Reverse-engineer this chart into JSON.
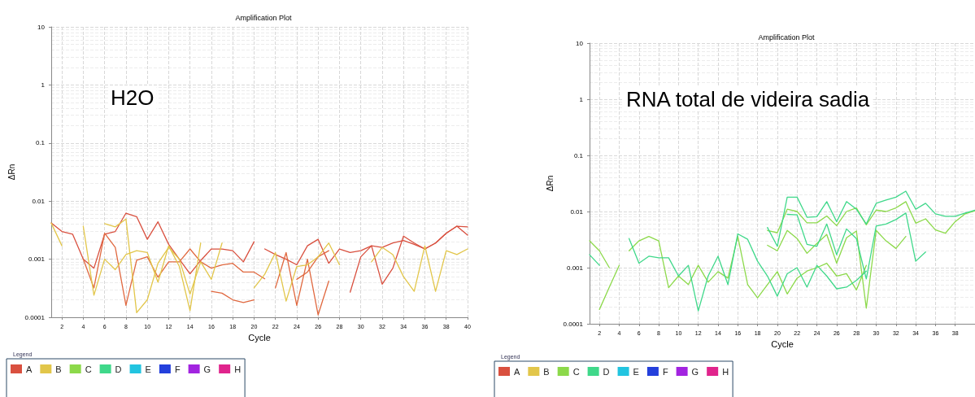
{
  "chart_data": [
    {
      "type": "line",
      "title": "Amplification Plot",
      "xlabel": "Cycle",
      "ylabel": "ΔRn",
      "annotations": [
        "H2O"
      ],
      "legend_title": "Legend",
      "legend": "bottom left",
      "log": "y",
      "grid": true,
      "marker": "none",
      "line_style": "solid",
      "x": [
        1,
        2,
        3,
        4,
        5,
        6,
        7,
        8,
        9,
        10,
        11,
        12,
        13,
        14,
        15,
        16,
        17,
        18,
        19,
        20,
        21,
        22,
        23,
        24,
        25,
        26,
        27,
        28,
        29,
        30,
        31,
        32,
        33,
        34,
        35,
        36,
        37,
        38,
        39,
        40
      ],
      "xlim": [
        1,
        40
      ],
      "xticks": [
        2,
        4,
        6,
        8,
        10,
        12,
        14,
        16,
        18,
        20,
        22,
        24,
        26,
        28,
        30,
        32,
        34,
        36,
        38,
        40
      ],
      "ylim": [
        0.0001,
        10
      ],
      "yticks": [
        0.0001,
        0.001,
        0.01,
        0.1,
        1,
        10
      ],
      "series": [
        {
          "name": "A",
          "color": "#d9503f",
          "values": [
            0.0042,
            0.003,
            0.0027,
            0.001,
            0.0007,
            0.0027,
            0.003,
            0.0062,
            0.0054,
            0.0022,
            0.0044,
            0.0018,
            0.001,
            0.00056,
            0.00095,
            0.0015,
            0.0015,
            0.0014,
            0.0009,
            0.002,
            null,
            null,
            null,
            null,
            null,
            null,
            null,
            null,
            null,
            null,
            null,
            null,
            null,
            null,
            null,
            null,
            null,
            null,
            null,
            null
          ]
        },
        {
          "color": "#d9503f",
          "values": [
            null,
            null,
            null,
            null,
            null,
            null,
            null,
            null,
            null,
            null,
            null,
            null,
            null,
            null,
            null,
            null,
            null,
            null,
            null,
            null,
            0.0015,
            0.0012,
            0.001,
            0.0008,
            0.0017,
            0.0022,
            0.00085,
            0.0015,
            0.0013,
            0.0014,
            0.0017,
            0.0016,
            0.0019,
            0.0021,
            0.0018,
            0.0015,
            0.0019,
            0.0028,
            0.0037,
            0.0026
          ]
        },
        {
          "color": "#e0683f",
          "values": [
            null,
            null,
            null,
            0.001,
            0.00032,
            0.0028,
            0.0016,
            0.00016,
            0.00096,
            0.0011,
            0.00049,
            0.0009,
            0.0009,
            0.0015,
            0.0009,
            0.0007,
            0.0008,
            0.00085,
            0.0006,
            0.0006,
            0.00046,
            null,
            null,
            0.00045,
            0.0006,
            0.0011,
            0.0014,
            null,
            null,
            null,
            null,
            null,
            null,
            null,
            null,
            null,
            null,
            null,
            null,
            null
          ]
        },
        {
          "color": "#d9503f",
          "values": [
            null,
            null,
            null,
            null,
            null,
            null,
            null,
            null,
            null,
            null,
            null,
            null,
            null,
            null,
            null,
            null,
            null,
            null,
            null,
            null,
            null,
            null,
            null,
            null,
            null,
            null,
            null,
            null,
            0.00027,
            0.0011,
            0.0017,
            0.00037,
            0.0007,
            0.0025,
            0.0019,
            0.0015,
            0.0019,
            0.0028,
            0.0037,
            0.0036
          ]
        },
        {
          "color": "#e0683f",
          "values": [
            null,
            null,
            null,
            null,
            null,
            null,
            null,
            null,
            null,
            null,
            null,
            null,
            null,
            null,
            null,
            0.00028,
            0.00026,
            0.0002,
            0.00018,
            0.0002,
            null,
            0.00032,
            0.0013,
            0.00016,
            0.001,
            0.00011,
            0.00042,
            null,
            null,
            null,
            null,
            null,
            null,
            null,
            null,
            null,
            null,
            null,
            null,
            null
          ]
        },
        {
          "name": "B",
          "color": "#e2c64a",
          "values": [
            0.0042,
            0.0017,
            null,
            0.0037,
            0.00024,
            0.001,
            0.00066,
            0.0012,
            0.0014,
            0.0013,
            0.0004,
            0.0017,
            0.00075,
            0.00013,
            0.0019,
            null,
            null,
            null,
            null,
            null,
            null,
            null,
            null,
            null,
            null,
            null,
            null,
            null,
            null,
            null,
            null,
            null,
            null,
            null,
            null,
            null,
            null,
            null,
            null,
            null
          ]
        },
        {
          "color": "#e2c64a",
          "values": [
            null,
            null,
            null,
            null,
            null,
            0.0041,
            0.0036,
            0.0049,
            0.00012,
            0.0002,
            0.00085,
            0.0016,
            0.001,
            0.00025,
            0.0009,
            0.00045,
            0.0019,
            null,
            null,
            null,
            null,
            null,
            null,
            null,
            null,
            null,
            null,
            null,
            null,
            null,
            null,
            null,
            null,
            null,
            null,
            null,
            null,
            null,
            null,
            null
          ]
        },
        {
          "color": "#e2c64a",
          "values": [
            null,
            null,
            null,
            null,
            null,
            null,
            null,
            null,
            null,
            null,
            null,
            null,
            null,
            null,
            null,
            null,
            null,
            null,
            null,
            0.00032,
            0.00055,
            0.0013,
            0.00019,
            0.00075,
            0.0008,
            0.0011,
            0.0019,
            0.0008,
            null,
            null,
            0.0009,
            0.0016,
            0.0012,
            0.0005,
            0.00028,
            0.0017,
            0.00028,
            0.0014,
            0.0012,
            0.0015
          ]
        },
        {
          "name": "C",
          "color": "#8cd94a",
          "values": [
            null,
            null,
            null,
            null,
            null,
            null,
            null,
            null,
            null,
            null,
            null,
            null,
            null,
            null,
            null,
            null,
            null,
            null,
            null,
            null,
            null,
            null,
            null,
            null,
            null,
            null,
            null,
            null,
            null,
            null,
            null,
            null,
            null,
            null,
            null,
            null,
            null,
            null,
            null,
            null
          ]
        },
        {
          "name": "D",
          "color": "#3fd88a",
          "values": [
            null,
            null,
            null,
            null,
            null,
            null,
            null,
            null,
            null,
            null,
            null,
            null,
            null,
            null,
            null,
            null,
            null,
            null,
            null,
            null,
            null,
            null,
            null,
            null,
            null,
            null,
            null,
            null,
            null,
            null,
            null,
            null,
            null,
            null,
            null,
            null,
            null,
            null,
            null,
            null
          ]
        },
        {
          "name": "E",
          "color": "#22c4e0",
          "values": [
            null,
            null,
            null,
            null,
            null,
            null,
            null,
            null,
            null,
            null,
            null,
            null,
            null,
            null,
            null,
            null,
            null,
            null,
            null,
            null,
            null,
            null,
            null,
            null,
            null,
            null,
            null,
            null,
            null,
            null,
            null,
            null,
            null,
            null,
            null,
            null,
            null,
            null,
            null,
            null
          ]
        },
        {
          "name": "F",
          "color": "#2440dc",
          "values": [
            null,
            null,
            null,
            null,
            null,
            null,
            null,
            null,
            null,
            null,
            null,
            null,
            null,
            null,
            null,
            null,
            null,
            null,
            null,
            null,
            null,
            null,
            null,
            null,
            null,
            null,
            null,
            null,
            null,
            null,
            null,
            null,
            null,
            null,
            null,
            null,
            null,
            null,
            null,
            null
          ]
        },
        {
          "name": "G",
          "color": "#a224e0",
          "values": [
            null,
            null,
            null,
            null,
            null,
            null,
            null,
            null,
            null,
            null,
            null,
            null,
            null,
            null,
            null,
            null,
            null,
            null,
            null,
            null,
            null,
            null,
            null,
            null,
            null,
            null,
            null,
            null,
            null,
            null,
            null,
            null,
            null,
            null,
            null,
            null,
            null,
            null,
            null,
            null
          ]
        },
        {
          "name": "H",
          "color": "#e0248c",
          "values": [
            null,
            null,
            null,
            null,
            null,
            null,
            null,
            null,
            null,
            null,
            null,
            null,
            null,
            null,
            null,
            null,
            null,
            null,
            null,
            null,
            null,
            null,
            null,
            null,
            null,
            null,
            null,
            null,
            null,
            null,
            null,
            null,
            null,
            null,
            null,
            null,
            null,
            null,
            null,
            null
          ]
        }
      ]
    },
    {
      "type": "line",
      "title": "Amplification Plot",
      "xlabel": "Cycle",
      "ylabel": "ΔRn",
      "annotations": [
        "RNA total de videira sadia"
      ],
      "legend_title": "Legend",
      "legend": "bottom left",
      "log": "y",
      "grid": true,
      "marker": "none",
      "line_style": "solid",
      "x": [
        1,
        2,
        3,
        4,
        5,
        6,
        7,
        8,
        9,
        10,
        11,
        12,
        13,
        14,
        15,
        16,
        17,
        18,
        19,
        20,
        21,
        22,
        23,
        24,
        25,
        26,
        27,
        28,
        29,
        30,
        31,
        32,
        33,
        34,
        35,
        36,
        37,
        38,
        39,
        40
      ],
      "xlim": [
        1,
        40
      ],
      "xticks": [
        2,
        4,
        6,
        8,
        10,
        12,
        14,
        16,
        18,
        20,
        22,
        24,
        26,
        28,
        30,
        32,
        34,
        36,
        38
      ],
      "ylim": [
        0.0001,
        10
      ],
      "yticks": [
        0.0001,
        0.001,
        0.01,
        0.1,
        1,
        10
      ],
      "series": [
        {
          "name": "A",
          "color": "#d9503f",
          "values": [
            null,
            null,
            null,
            null,
            null,
            null,
            null,
            null,
            null,
            null,
            null,
            null,
            null,
            null,
            null,
            null,
            null,
            null,
            null,
            null,
            null,
            null,
            null,
            null,
            null,
            null,
            null,
            null,
            null,
            null,
            null,
            null,
            null,
            null,
            null,
            null,
            null,
            null,
            null,
            null
          ]
        },
        {
          "name": "B",
          "color": "#e2c64a",
          "values": [
            null,
            null,
            null,
            null,
            null,
            null,
            null,
            null,
            null,
            null,
            null,
            null,
            null,
            null,
            null,
            null,
            null,
            null,
            null,
            null,
            null,
            null,
            null,
            null,
            null,
            null,
            null,
            null,
            null,
            null,
            null,
            null,
            null,
            null,
            null,
            null,
            null,
            null,
            null,
            null
          ]
        },
        {
          "name": "C",
          "color": "#8cd94a",
          "values": [
            null,
            null,
            null,
            null,
            null,
            null,
            null,
            null,
            null,
            null,
            null,
            null,
            null,
            null,
            null,
            null,
            null,
            null,
            0.0046,
            0.0042,
            0.011,
            0.01,
            0.0063,
            0.0063,
            0.0083,
            0.0056,
            0.01,
            0.0116,
            0.0058,
            0.0106,
            0.01,
            0.0116,
            0.015,
            0.0062,
            0.0074,
            0.0047,
            0.0041,
            0.0066,
            0.0091,
            0.0103
          ]
        },
        {
          "color": "#8cd94a",
          "values": [
            null,
            null,
            null,
            null,
            null,
            null,
            null,
            null,
            null,
            null,
            null,
            null,
            null,
            null,
            null,
            null,
            null,
            null,
            0.0025,
            0.002,
            0.0046,
            0.0033,
            0.0018,
            0.0027,
            0.0039,
            0.0012,
            0.0034,
            0.0045,
            0.00019,
            0.0046,
            0.003,
            0.0022,
            0.0036,
            null,
            null,
            null,
            null,
            null,
            null,
            null
          ]
        },
        {
          "color": "#8cd94a",
          "values": [
            0.003,
            0.002,
            0.001,
            null,
            0.002,
            0.003,
            0.0036,
            0.003,
            0.00044,
            0.00071,
            0.0005,
            0.0011,
            0.00055,
            0.00085,
            0.00065,
            0.0036,
            0.0005,
            0.00029,
            0.0005,
            0.00085,
            0.00034,
            0.00065,
            0.00087,
            0.001,
            0.0012,
            0.00071,
            0.00078,
            0.0004,
            0.0011,
            null,
            null,
            null,
            null,
            null,
            null,
            null,
            null,
            null,
            null,
            null
          ]
        },
        {
          "color": "#8cd94a",
          "values": [
            null,
            0.00018,
            0.00045,
            0.0011,
            null,
            null,
            null,
            null,
            null,
            null,
            null,
            null,
            null,
            null,
            null,
            null,
            null,
            null,
            null,
            null,
            null,
            null,
            null,
            null,
            null,
            null,
            null,
            null,
            null,
            null,
            null,
            null,
            null,
            null,
            null,
            null,
            null,
            null,
            null,
            null
          ]
        },
        {
          "name": "D",
          "color": "#3fd88a",
          "values": [
            null,
            null,
            null,
            null,
            null,
            null,
            null,
            null,
            null,
            null,
            null,
            null,
            null,
            null,
            null,
            null,
            null,
            null,
            0.0052,
            0.0024,
            0.018,
            0.018,
            0.0079,
            0.0081,
            0.015,
            0.0066,
            0.015,
            0.011,
            0.006,
            0.014,
            0.016,
            0.018,
            0.023,
            0.011,
            0.014,
            0.0091,
            0.0082,
            0.0082,
            0.0094,
            0.0106
          ]
        },
        {
          "color": "#3fd88a",
          "values": [
            null,
            null,
            null,
            null,
            null,
            null,
            null,
            null,
            null,
            null,
            null,
            null,
            null,
            null,
            null,
            null,
            null,
            null,
            null,
            null,
            0.0089,
            0.0087,
            0.0026,
            0.0024,
            0.006,
            0.0017,
            0.0049,
            0.0033,
            0.00063,
            0.0055,
            0.006,
            0.0072,
            0.0094,
            0.0013,
            0.0019,
            null,
            null,
            null,
            null,
            null
          ]
        },
        {
          "color": "#3fd88a",
          "values": [
            0.0017,
            0.0011,
            null,
            null,
            0.0033,
            0.0012,
            0.0016,
            0.0015,
            0.0015,
            0.00071,
            0.0011,
            0.00017,
            0.00071,
            0.0016,
            0.0005,
            0.004,
            0.0032,
            0.0013,
            0.00071,
            0.00031,
            0.00078,
            0.001,
            0.00045,
            0.0011,
            0.00071,
            0.00042,
            0.00045,
            0.00059,
            0.00087,
            null,
            null,
            null,
            null,
            null,
            null,
            null,
            null,
            null,
            null,
            null
          ]
        },
        {
          "name": "E",
          "color": "#22c4e0",
          "values": [
            null,
            null,
            null,
            null,
            null,
            null,
            null,
            null,
            null,
            null,
            null,
            null,
            null,
            null,
            null,
            null,
            null,
            null,
            null,
            null,
            null,
            null,
            null,
            null,
            null,
            null,
            null,
            null,
            null,
            null,
            null,
            null,
            null,
            null,
            null,
            null,
            null,
            null,
            null,
            null
          ]
        },
        {
          "name": "F",
          "color": "#2440dc",
          "values": [
            null,
            null,
            null,
            null,
            null,
            null,
            null,
            null,
            null,
            null,
            null,
            null,
            null,
            null,
            null,
            null,
            null,
            null,
            null,
            null,
            null,
            null,
            null,
            null,
            null,
            null,
            null,
            null,
            null,
            null,
            null,
            null,
            null,
            null,
            null,
            null,
            null,
            null,
            null,
            null
          ]
        },
        {
          "name": "G",
          "color": "#a224e0",
          "values": [
            null,
            null,
            null,
            null,
            null,
            null,
            null,
            null,
            null,
            null,
            null,
            null,
            null,
            null,
            null,
            null,
            null,
            null,
            null,
            null,
            null,
            null,
            null,
            null,
            null,
            null,
            null,
            null,
            null,
            null,
            null,
            null,
            null,
            null,
            null,
            null,
            null,
            null,
            null,
            null
          ]
        },
        {
          "name": "H",
          "color": "#e0248c",
          "values": [
            null,
            null,
            null,
            null,
            null,
            null,
            null,
            null,
            null,
            null,
            null,
            null,
            null,
            null,
            null,
            null,
            null,
            null,
            null,
            null,
            null,
            null,
            null,
            null,
            null,
            null,
            null,
            null,
            null,
            null,
            null,
            null,
            null,
            null,
            null,
            null,
            null,
            null,
            null,
            null
          ]
        }
      ]
    }
  ]
}
